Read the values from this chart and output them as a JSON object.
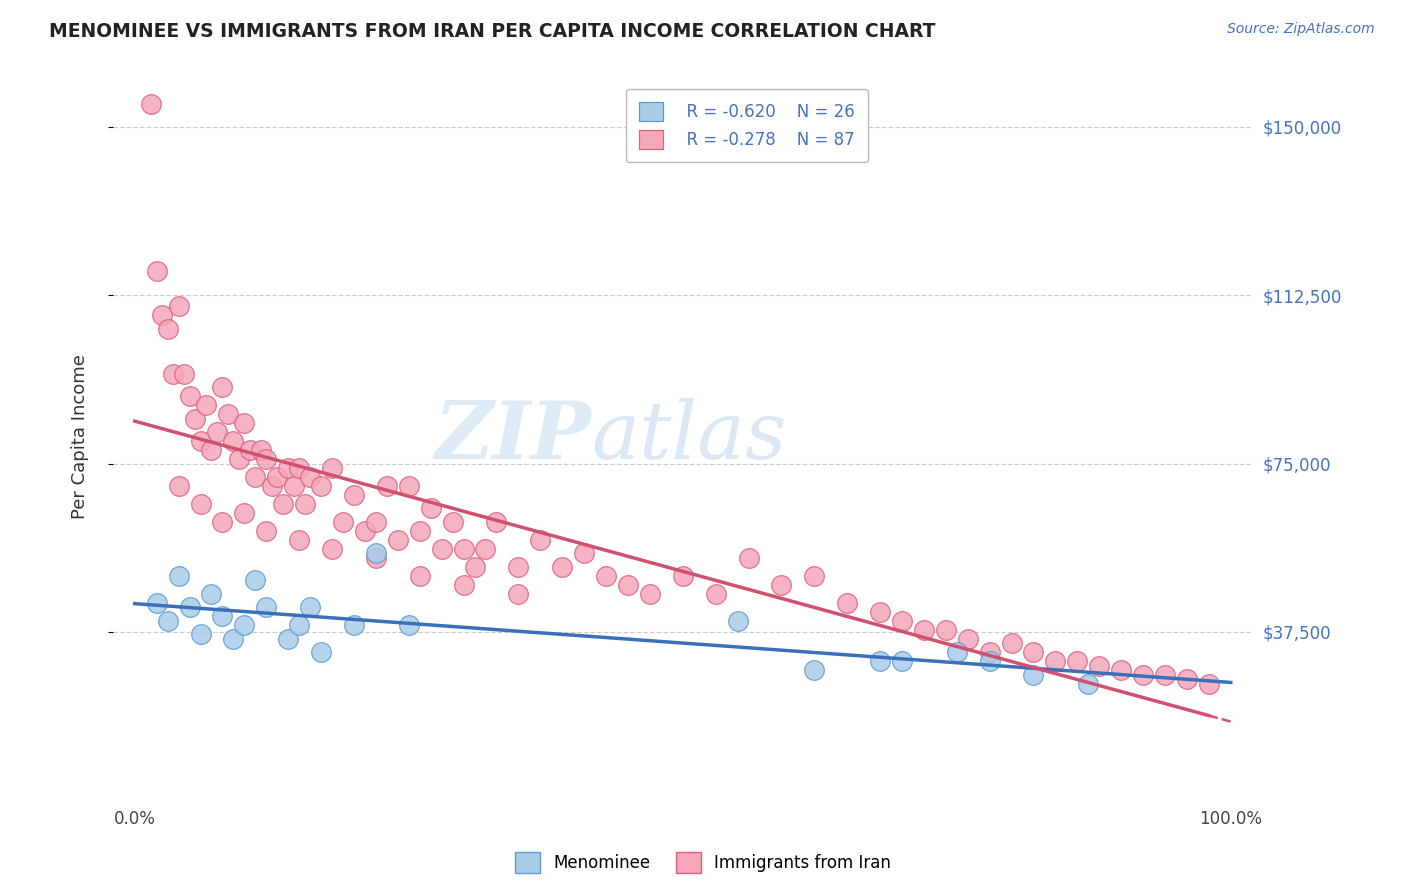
{
  "title": "MENOMINEE VS IMMIGRANTS FROM IRAN PER CAPITA INCOME CORRELATION CHART",
  "source": "Source: ZipAtlas.com",
  "ylabel": "Per Capita Income",
  "ylim": [
    0,
    162000
  ],
  "xlim": [
    -0.02,
    1.02
  ],
  "ytick_vals": [
    37500,
    75000,
    112500,
    150000
  ],
  "ytick_labels": [
    "$37,500",
    "$75,000",
    "$112,500",
    "$150,000"
  ],
  "legend_r": [
    "R = -0.620",
    "R = -0.278"
  ],
  "legend_n": [
    "N = 26",
    "N = 87"
  ],
  "legend_labels": [
    "Menominee",
    "Immigrants from Iran"
  ],
  "blue_fill": "#a8cce8",
  "blue_edge": "#5b9bd5",
  "pink_fill": "#f4a7b9",
  "pink_edge": "#e06080",
  "blue_line": "#3a6fba",
  "pink_line": "#d05070",
  "watermark_zip": "ZIP",
  "watermark_atlas": "atlas",
  "background": "#ffffff",
  "grid_color": "#cccccc",
  "blue_scatter_x": [
    0.02,
    0.03,
    0.04,
    0.05,
    0.06,
    0.07,
    0.08,
    0.09,
    0.1,
    0.11,
    0.12,
    0.14,
    0.15,
    0.16,
    0.17,
    0.2,
    0.22,
    0.25,
    0.55,
    0.62,
    0.68,
    0.7,
    0.75,
    0.78,
    0.82,
    0.87
  ],
  "blue_scatter_y": [
    44000,
    40000,
    50000,
    43000,
    37000,
    46000,
    41000,
    36000,
    39000,
    49000,
    43000,
    36000,
    39000,
    43000,
    33000,
    39000,
    55000,
    39000,
    40000,
    29000,
    31000,
    31000,
    33000,
    31000,
    28000,
    26000
  ],
  "pink_scatter_x": [
    0.015,
    0.02,
    0.025,
    0.03,
    0.035,
    0.04,
    0.045,
    0.05,
    0.055,
    0.06,
    0.065,
    0.07,
    0.075,
    0.08,
    0.085,
    0.09,
    0.095,
    0.1,
    0.105,
    0.11,
    0.115,
    0.12,
    0.125,
    0.13,
    0.135,
    0.14,
    0.145,
    0.15,
    0.155,
    0.16,
    0.17,
    0.18,
    0.19,
    0.2,
    0.21,
    0.22,
    0.23,
    0.24,
    0.25,
    0.26,
    0.27,
    0.28,
    0.29,
    0.3,
    0.31,
    0.32,
    0.33,
    0.35,
    0.37,
    0.39,
    0.41,
    0.43,
    0.45,
    0.47,
    0.5,
    0.53,
    0.56,
    0.59,
    0.62,
    0.65,
    0.68,
    0.7,
    0.72,
    0.74,
    0.76,
    0.78,
    0.8,
    0.82,
    0.84,
    0.86,
    0.88,
    0.9,
    0.92,
    0.94,
    0.96,
    0.98,
    0.04,
    0.06,
    0.08,
    0.1,
    0.12,
    0.15,
    0.18,
    0.22,
    0.26,
    0.3,
    0.35
  ],
  "pink_scatter_y": [
    155000,
    118000,
    108000,
    105000,
    95000,
    110000,
    95000,
    90000,
    85000,
    80000,
    88000,
    78000,
    82000,
    92000,
    86000,
    80000,
    76000,
    84000,
    78000,
    72000,
    78000,
    76000,
    70000,
    72000,
    66000,
    74000,
    70000,
    74000,
    66000,
    72000,
    70000,
    74000,
    62000,
    68000,
    60000,
    62000,
    70000,
    58000,
    70000,
    60000,
    65000,
    56000,
    62000,
    56000,
    52000,
    56000,
    62000,
    52000,
    58000,
    52000,
    55000,
    50000,
    48000,
    46000,
    50000,
    46000,
    54000,
    48000,
    50000,
    44000,
    42000,
    40000,
    38000,
    38000,
    36000,
    33000,
    35000,
    33000,
    31000,
    31000,
    30000,
    29000,
    28000,
    28000,
    27000,
    26000,
    70000,
    66000,
    62000,
    64000,
    60000,
    58000,
    56000,
    54000,
    50000,
    48000,
    46000
  ]
}
